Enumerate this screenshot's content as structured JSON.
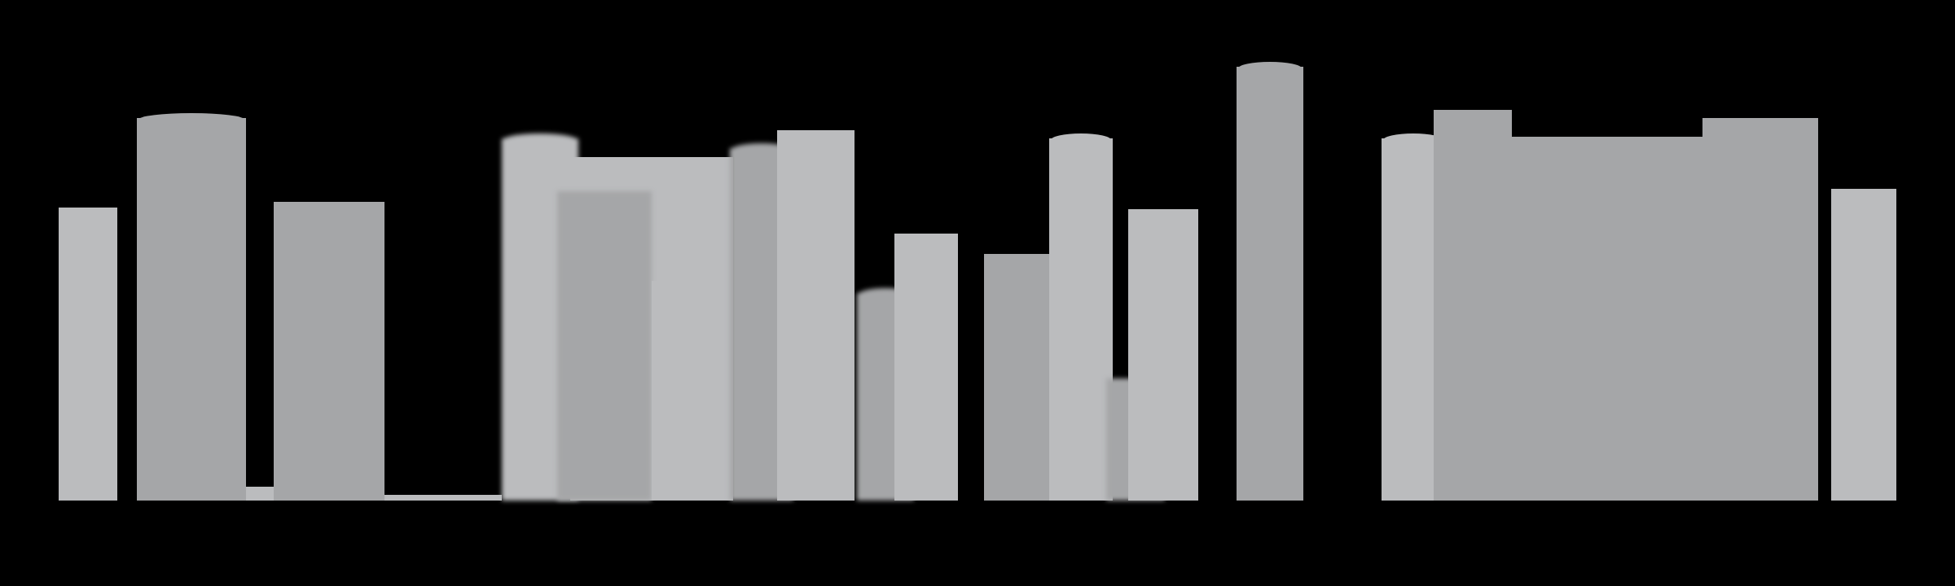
{
  "palette": {
    "background": "#000000",
    "light_gray": "#bbbcbe",
    "dark_gray": "#a5a6a8"
  },
  "skyline": {
    "shapes": [
      "tower-01",
      "tower-02",
      "tower-03",
      "tower-04",
      "tower-05",
      "tower-06",
      "tower-07",
      "tower-08",
      "tower-09",
      "tower-10",
      "tower-11",
      "tower-12",
      "tower-13",
      "tower-14",
      "tower-15",
      "tower-16",
      "tower-17",
      "tower-18",
      "tower-19",
      "tower-20",
      "tower-21",
      "tower-22",
      "tower-23"
    ]
  }
}
